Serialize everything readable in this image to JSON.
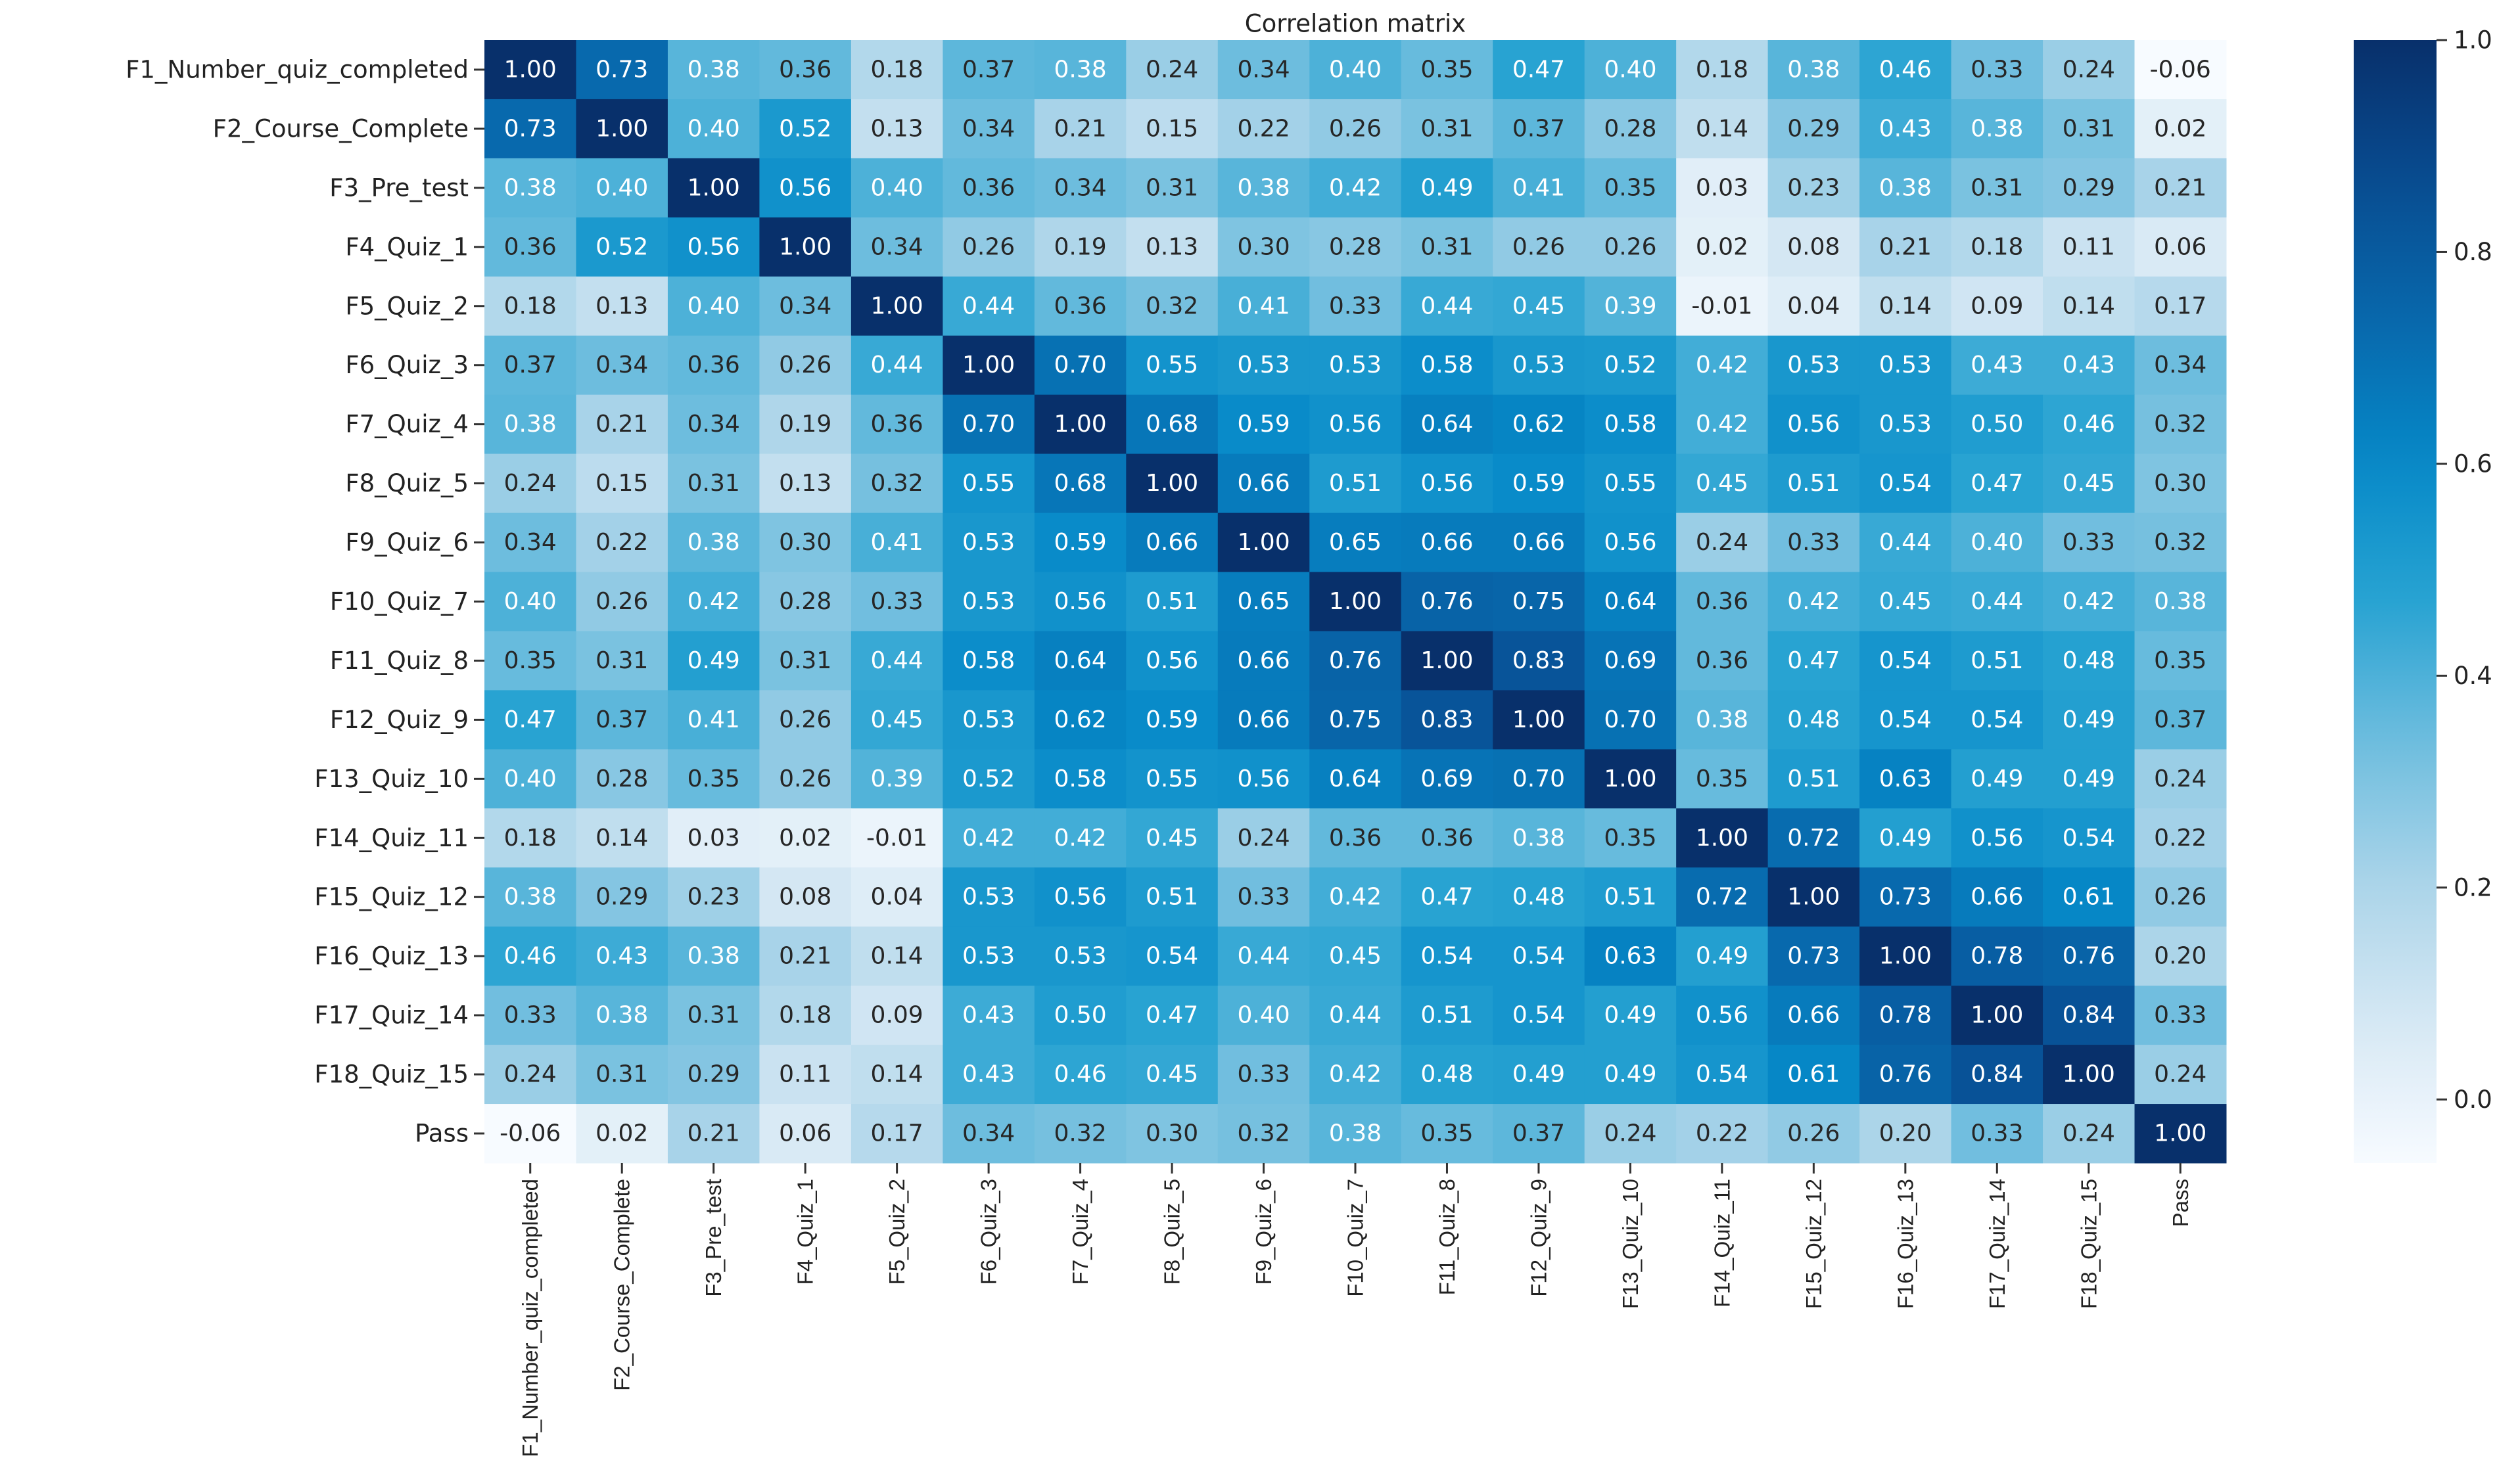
{
  "chart_data": {
    "type": "heatmap",
    "title": "Correlation matrix",
    "colormap": "Blues",
    "categories": [
      "F1_Number_quiz_completed",
      "F2_Course_Complete",
      "F3_Pre_test",
      "F4_Quiz_1",
      "F5_Quiz_2",
      "F6_Quiz_3",
      "F7_Quiz_4",
      "F8_Quiz_5",
      "F9_Quiz_6",
      "F10_Quiz_7",
      "F11_Quiz_8",
      "F12_Quiz_9",
      "F13_Quiz_10",
      "F14_Quiz_11",
      "F15_Quiz_12",
      "F16_Quiz_13",
      "F17_Quiz_14",
      "F18_Quiz_15",
      "Pass"
    ],
    "values": [
      [
        1,
        0.73,
        0.38,
        0.36,
        0.18,
        0.37,
        0.38,
        0.24,
        0.34,
        0.4,
        0.35,
        0.47,
        0.4,
        0.18,
        0.38,
        0.46,
        0.33,
        0.24,
        -0.06
      ],
      [
        0.73,
        1,
        0.4,
        0.52,
        0.13,
        0.34,
        0.21,
        0.15,
        0.22,
        0.26,
        0.31,
        0.37,
        0.28,
        0.14,
        0.29,
        0.43,
        0.38,
        0.31,
        0.02
      ],
      [
        0.38,
        0.4,
        1,
        0.56,
        0.4,
        0.36,
        0.34,
        0.31,
        0.38,
        0.42,
        0.49,
        0.41,
        0.35,
        0.03,
        0.23,
        0.38,
        0.31,
        0.29,
        0.21
      ],
      [
        0.36,
        0.52,
        0.56,
        1,
        0.34,
        0.26,
        0.19,
        0.13,
        0.3,
        0.28,
        0.31,
        0.26,
        0.26,
        0.02,
        0.08,
        0.21,
        0.18,
        0.11,
        0.06
      ],
      [
        0.18,
        0.13,
        0.4,
        0.34,
        1,
        0.44,
        0.36,
        0.32,
        0.41,
        0.33,
        0.44,
        0.45,
        0.39,
        -0.01,
        0.04,
        0.14,
        0.09,
        0.14,
        0.17
      ],
      [
        0.37,
        0.34,
        0.36,
        0.26,
        0.44,
        1,
        0.7,
        0.55,
        0.53,
        0.53,
        0.58,
        0.53,
        0.52,
        0.42,
        0.53,
        0.53,
        0.43,
        0.43,
        0.34
      ],
      [
        0.38,
        0.21,
        0.34,
        0.19,
        0.36,
        0.7,
        1,
        0.68,
        0.59,
        0.56,
        0.64,
        0.62,
        0.58,
        0.42,
        0.56,
        0.53,
        0.5,
        0.46,
        0.32
      ],
      [
        0.24,
        0.15,
        0.31,
        0.13,
        0.32,
        0.55,
        0.68,
        1,
        0.66,
        0.51,
        0.56,
        0.59,
        0.55,
        0.45,
        0.51,
        0.54,
        0.47,
        0.45,
        0.3
      ],
      [
        0.34,
        0.22,
        0.38,
        0.3,
        0.41,
        0.53,
        0.59,
        0.66,
        1,
        0.65,
        0.66,
        0.66,
        0.56,
        0.24,
        0.33,
        0.44,
        0.4,
        0.33,
        0.32
      ],
      [
        0.4,
        0.26,
        0.42,
        0.28,
        0.33,
        0.53,
        0.56,
        0.51,
        0.65,
        1,
        0.76,
        0.75,
        0.64,
        0.36,
        0.42,
        0.45,
        0.44,
        0.42,
        0.38
      ],
      [
        0.35,
        0.31,
        0.49,
        0.31,
        0.44,
        0.58,
        0.64,
        0.56,
        0.66,
        0.76,
        1,
        0.83,
        0.69,
        0.36,
        0.47,
        0.54,
        0.51,
        0.48,
        0.35
      ],
      [
        0.47,
        0.37,
        0.41,
        0.26,
        0.45,
        0.53,
        0.62,
        0.59,
        0.66,
        0.75,
        0.83,
        1,
        0.7,
        0.38,
        0.48,
        0.54,
        0.54,
        0.49,
        0.37
      ],
      [
        0.4,
        0.28,
        0.35,
        0.26,
        0.39,
        0.52,
        0.58,
        0.55,
        0.56,
        0.64,
        0.69,
        0.7,
        1,
        0.35,
        0.51,
        0.63,
        0.49,
        0.49,
        0.24
      ],
      [
        0.18,
        0.14,
        0.03,
        0.02,
        -0.01,
        0.42,
        0.42,
        0.45,
        0.24,
        0.36,
        0.36,
        0.38,
        0.35,
        1,
        0.72,
        0.49,
        0.56,
        0.54,
        0.22
      ],
      [
        0.38,
        0.29,
        0.23,
        0.08,
        0.04,
        0.53,
        0.56,
        0.51,
        0.33,
        0.42,
        0.47,
        0.48,
        0.51,
        0.72,
        1,
        0.73,
        0.66,
        0.61,
        0.26
      ],
      [
        0.46,
        0.43,
        0.38,
        0.21,
        0.14,
        0.53,
        0.53,
        0.54,
        0.44,
        0.45,
        0.54,
        0.54,
        0.63,
        0.49,
        0.73,
        1,
        0.78,
        0.76,
        0.2
      ],
      [
        0.33,
        0.38,
        0.31,
        0.18,
        0.09,
        0.43,
        0.5,
        0.47,
        0.4,
        0.44,
        0.51,
        0.54,
        0.49,
        0.56,
        0.66,
        0.78,
        1,
        0.84,
        0.33
      ],
      [
        0.24,
        0.31,
        0.29,
        0.11,
        0.14,
        0.43,
        0.46,
        0.45,
        0.33,
        0.42,
        0.48,
        0.49,
        0.49,
        0.54,
        0.61,
        0.76,
        0.84,
        1,
        0.24
      ],
      [
        -0.06,
        0.02,
        0.21,
        0.06,
        0.17,
        0.34,
        0.32,
        0.3,
        0.32,
        0.38,
        0.35,
        0.37,
        0.24,
        0.22,
        0.26,
        0.2,
        0.33,
        0.24,
        1
      ]
    ],
    "value_labels": [
      [
        "1.00",
        "0.73",
        "0.38",
        "0.36",
        "0.18",
        "0.37",
        "0.38",
        "0.24",
        "0.34",
        "0.40",
        "0.35",
        "0.47",
        "0.40",
        "0.18",
        "0.38",
        "0.46",
        "0.33",
        "0.24",
        "-0.06"
      ],
      [
        "0.73",
        "1.00",
        "0.40",
        "0.52",
        "0.13",
        "0.34",
        "0.21",
        "0.15",
        "0.22",
        "0.26",
        "0.31",
        "0.37",
        "0.28",
        "0.14",
        "0.29",
        "0.43",
        "0.38",
        "0.31",
        "0.02"
      ],
      [
        "0.38",
        "0.40",
        "1.00",
        "0.56",
        "0.40",
        "0.36",
        "0.34",
        "0.31",
        "0.38",
        "0.42",
        "0.49",
        "0.41",
        "0.35",
        "0.03",
        "0.23",
        "0.38",
        "0.31",
        "0.29",
        "0.21"
      ],
      [
        "0.36",
        "0.52",
        "0.56",
        "1.00",
        "0.34",
        "0.26",
        "0.19",
        "0.13",
        "0.30",
        "0.28",
        "0.31",
        "0.26",
        "0.26",
        "0.02",
        "0.08",
        "0.21",
        "0.18",
        "0.11",
        "0.06"
      ],
      [
        "0.18",
        "0.13",
        "0.40",
        "0.34",
        "1.00",
        "0.44",
        "0.36",
        "0.32",
        "0.41",
        "0.33",
        "0.44",
        "0.45",
        "0.39",
        "-0.01",
        "0.04",
        "0.14",
        "0.09",
        "0.14",
        "0.17"
      ],
      [
        "0.37",
        "0.34",
        "0.36",
        "0.26",
        "0.44",
        "1.00",
        "0.70",
        "0.55",
        "0.53",
        "0.53",
        "0.58",
        "0.53",
        "0.52",
        "0.42",
        "0.53",
        "0.53",
        "0.43",
        "0.43",
        "0.34"
      ],
      [
        "0.38",
        "0.21",
        "0.34",
        "0.19",
        "0.36",
        "0.70",
        "1.00",
        "0.68",
        "0.59",
        "0.56",
        "0.64",
        "0.62",
        "0.58",
        "0.42",
        "0.56",
        "0.53",
        "0.50",
        "0.46",
        "0.32"
      ],
      [
        "0.24",
        "0.15",
        "0.31",
        "0.13",
        "0.32",
        "0.55",
        "0.68",
        "1.00",
        "0.66",
        "0.51",
        "0.56",
        "0.59",
        "0.55",
        "0.45",
        "0.51",
        "0.54",
        "0.47",
        "0.45",
        "0.30"
      ],
      [
        "0.34",
        "0.22",
        "0.38",
        "0.30",
        "0.41",
        "0.53",
        "0.59",
        "0.66",
        "1.00",
        "0.65",
        "0.66",
        "0.66",
        "0.56",
        "0.24",
        "0.33",
        "0.44",
        "0.40",
        "0.33",
        "0.32"
      ],
      [
        "0.40",
        "0.26",
        "0.42",
        "0.28",
        "0.33",
        "0.53",
        "0.56",
        "0.51",
        "0.65",
        "1.00",
        "0.76",
        "0.75",
        "0.64",
        "0.36",
        "0.42",
        "0.45",
        "0.44",
        "0.42",
        "0.38"
      ],
      [
        "0.35",
        "0.31",
        "0.49",
        "0.31",
        "0.44",
        "0.58",
        "0.64",
        "0.56",
        "0.66",
        "0.76",
        "1.00",
        "0.83",
        "0.69",
        "0.36",
        "0.47",
        "0.54",
        "0.51",
        "0.48",
        "0.35"
      ],
      [
        "0.47",
        "0.37",
        "0.41",
        "0.26",
        "0.45",
        "0.53",
        "0.62",
        "0.59",
        "0.66",
        "0.75",
        "0.83",
        "1.00",
        "0.70",
        "0.38",
        "0.48",
        "0.54",
        "0.54",
        "0.49",
        "0.37"
      ],
      [
        "0.40",
        "0.28",
        "0.35",
        "0.26",
        "0.39",
        "0.52",
        "0.58",
        "0.55",
        "0.56",
        "0.64",
        "0.69",
        "0.70",
        "1.00",
        "0.35",
        "0.51",
        "0.63",
        "0.49",
        "0.49",
        "0.24"
      ],
      [
        "0.18",
        "0.14",
        "0.03",
        "0.02",
        "-0.01",
        "0.42",
        "0.42",
        "0.45",
        "0.24",
        "0.36",
        "0.36",
        "0.38",
        "0.35",
        "1.00",
        "0.72",
        "0.49",
        "0.56",
        "0.54",
        "0.22"
      ],
      [
        "0.38",
        "0.29",
        "0.23",
        "0.08",
        "0.04",
        "0.53",
        "0.56",
        "0.51",
        "0.33",
        "0.42",
        "0.47",
        "0.48",
        "0.51",
        "0.72",
        "1.00",
        "0.73",
        "0.66",
        "0.61",
        "0.26"
      ],
      [
        "0.46",
        "0.43",
        "0.38",
        "0.21",
        "0.14",
        "0.53",
        "0.53",
        "0.54",
        "0.44",
        "0.45",
        "0.54",
        "0.54",
        "0.63",
        "0.49",
        "0.73",
        "1.00",
        "0.78",
        "0.76",
        "0.20"
      ],
      [
        "0.33",
        "0.38",
        "0.31",
        "0.18",
        "0.09",
        "0.43",
        "0.50",
        "0.47",
        "0.40",
        "0.44",
        "0.51",
        "0.54",
        "0.49",
        "0.56",
        "0.66",
        "0.78",
        "1.00",
        "0.84",
        "0.33"
      ],
      [
        "0.24",
        "0.31",
        "0.29",
        "0.11",
        "0.14",
        "0.43",
        "0.46",
        "0.45",
        "0.33",
        "0.42",
        "0.48",
        "0.49",
        "0.49",
        "0.54",
        "0.61",
        "0.76",
        "0.84",
        "1.00",
        "0.24"
      ],
      [
        "-0.06",
        "0.02",
        "0.21",
        "0.06",
        "0.17",
        "0.34",
        "0.32",
        "0.30",
        "0.32",
        "0.38",
        "0.35",
        "0.37",
        "0.24",
        "0.22",
        "0.26",
        "0.20",
        "0.33",
        "0.24",
        "1.00"
      ]
    ],
    "clim": [
      -0.06,
      1
    ],
    "cticks": [
      {
        "value": 0,
        "label": "0.0"
      },
      {
        "value": 0.2,
        "label": "0.2"
      },
      {
        "value": 0.4,
        "label": "0.4"
      },
      {
        "value": 0.6,
        "label": "0.6"
      },
      {
        "value": 0.8,
        "label": "0.8"
      },
      {
        "value": 1,
        "label": "1.0"
      }
    ]
  }
}
